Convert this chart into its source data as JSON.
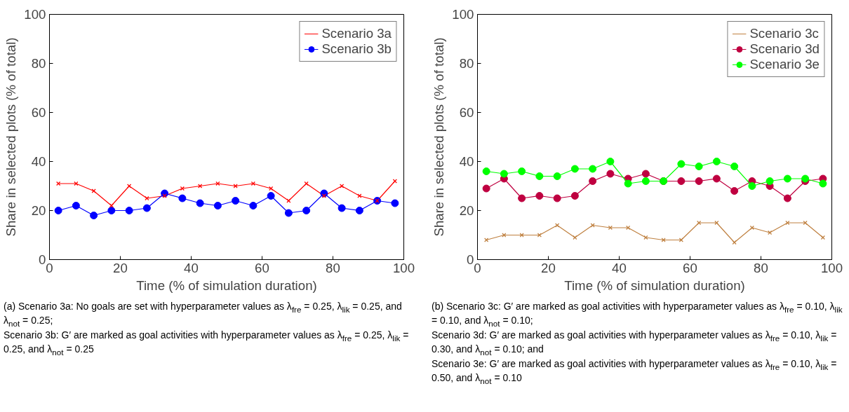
{
  "chart_data": [
    {
      "type": "line",
      "xlabel": "Time (% of simulation duration)",
      "ylabel": "Share in selected plots (% of total)",
      "x": [
        2.5,
        7.5,
        12.5,
        17.5,
        22.5,
        27.5,
        32.5,
        37.5,
        42.5,
        47.5,
        52.5,
        57.5,
        62.5,
        67.5,
        72.5,
        77.5,
        82.5,
        87.5,
        92.5,
        97.5
      ],
      "series": [
        {
          "name": "Scenario 3a",
          "color": "#ff0000",
          "marker": "cross",
          "values": [
            31,
            31,
            28,
            22,
            30,
            25,
            26,
            29,
            30,
            31,
            30,
            31,
            29,
            24,
            31,
            26,
            30,
            26,
            24,
            32
          ]
        },
        {
          "name": "Scenario 3b",
          "color": "#0000ff",
          "marker": "circle",
          "values": [
            20,
            22,
            18,
            20,
            20,
            21,
            27,
            25,
            23,
            22,
            24,
            22,
            26,
            19,
            20,
            27,
            21,
            20,
            24,
            23
          ]
        }
      ],
      "xlim": [
        0,
        100
      ],
      "ylim": [
        0,
        100
      ],
      "xticks": [
        0,
        20,
        40,
        60,
        80,
        100
      ],
      "yticks": [
        0,
        20,
        40,
        60,
        80,
        100
      ],
      "grid": false,
      "legend": "top right",
      "annotations": [
        "(a) Scenario 3a: No goals are set with hyperparameter values as λ$_{fre}$ = 0.25, λ$_{lik}$ = 0.25, and λ$_{not}$ = 0.25;",
        "Scenario 3b: G′ are marked as goal activities with hyperparameter values as λ$_{fre}$ = 0.25, λ$_{lik}$ = 0.25, and λ$_{not}$ = 0.25"
      ]
    },
    {
      "type": "line",
      "xlabel": "Time (% of simulation duration)",
      "ylabel": "Share in selected plots (% of total)",
      "x": [
        2.5,
        7.5,
        12.5,
        17.5,
        22.5,
        27.5,
        32.5,
        37.5,
        42.5,
        47.5,
        52.5,
        57.5,
        62.5,
        67.5,
        72.5,
        77.5,
        82.5,
        87.5,
        92.5,
        97.5
      ],
      "series": [
        {
          "name": "Scenario 3c",
          "color": "#bf8040",
          "marker": "cross",
          "values": [
            8,
            10,
            10,
            10,
            14,
            9,
            14,
            13,
            13,
            9,
            8,
            8,
            15,
            15,
            7,
            13,
            11,
            15,
            15,
            9
          ]
        },
        {
          "name": "Scenario 3d",
          "color": "#bf0040",
          "marker": "circle",
          "values": [
            29,
            33,
            25,
            26,
            25,
            26,
            32,
            35,
            33,
            35,
            32,
            32,
            32,
            33,
            28,
            32,
            30,
            25,
            32,
            33
          ]
        },
        {
          "name": "Scenario 3e",
          "color": "#00ff00",
          "marker": "circle",
          "values": [
            36,
            35,
            36,
            34,
            34,
            37,
            37,
            40,
            31,
            32,
            32,
            39,
            38,
            40,
            38,
            30,
            32,
            33,
            33,
            31
          ]
        }
      ],
      "xlim": [
        0,
        100
      ],
      "ylim": [
        0,
        100
      ],
      "xticks": [
        0,
        20,
        40,
        60,
        80,
        100
      ],
      "yticks": [
        0,
        20,
        40,
        60,
        80,
        100
      ],
      "grid": false,
      "legend": "top right",
      "annotations": [
        "(b) Scenario 3c: G′ are marked as goal activities with hyperparameter values as λ$_{fre}$ = 0.10, λ$_{lik}$ = 0.10, and λ$_{not}$ = 0.10;",
        "Scenario 3d: G′ are marked as goal activities with hyperparameter values as λ$_{fre}$ = 0.10, λ$_{lik}$ = 0.30, and λ$_{not}$ = 0.10; and",
        "Scenario 3e: G′ are marked as goal activities with hyperparameter values as λ$_{fre}$ = 0.10, λ$_{lik}$ = 0.50, and λ$_{not}$ = 0.10"
      ]
    }
  ]
}
